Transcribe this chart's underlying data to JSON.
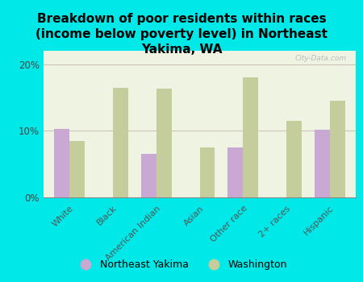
{
  "title": "Breakdown of poor residents within races\n(income below poverty level) in Northeast\nYakima, WA",
  "categories": [
    "White",
    "Black",
    "American Indian",
    "Asian",
    "Other race",
    "2+ races",
    "Hispanic"
  ],
  "northeast_yakima": [
    10.3,
    0,
    6.5,
    0,
    7.5,
    0,
    10.2
  ],
  "washington": [
    8.5,
    16.5,
    16.3,
    7.5,
    18.0,
    11.5,
    14.5
  ],
  "bar_color_ny": "#c9a8d4",
  "bar_color_wa": "#c5cd9d",
  "background_color": "#00e8e8",
  "plot_bg_color": "#eef3e2",
  "ylim": [
    0,
    22
  ],
  "yticks": [
    0,
    10,
    20
  ],
  "ytick_labels": [
    "0%",
    "10%",
    "20%"
  ],
  "legend_ny": "Northeast Yakima",
  "legend_wa": "Washington",
  "watermark": "City-Data.com",
  "title_fontsize": 11,
  "tick_fontsize": 8.5,
  "legend_fontsize": 9
}
